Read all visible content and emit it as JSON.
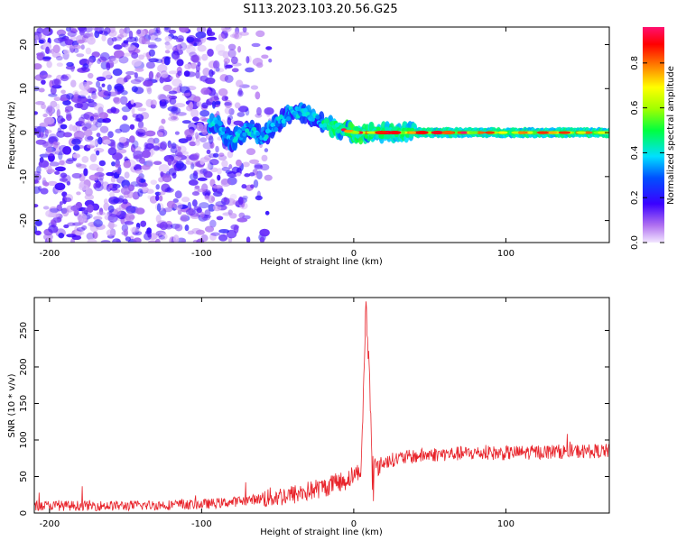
{
  "figure_title": "S113.2023.103.20.56.G25",
  "colors": {
    "snr_line": "#e8232a",
    "axis": "#000000",
    "colormap": [
      "#d9b8f5",
      "#8a2be2",
      "#1e1eff",
      "#00bfff",
      "#00ff7f",
      "#7cfc00",
      "#ffff00",
      "#ff8c00",
      "#ff0000",
      "#ff1493"
    ]
  },
  "chart_data": [
    {
      "type": "heatmap",
      "name": "spectrogram",
      "xlabel": "Height of straight line (km)",
      "ylabel": "Frequency (Hz)",
      "xlim": [
        -210,
        168
      ],
      "ylim": [
        -25,
        24
      ],
      "x_ticks": [
        -200,
        -100,
        0,
        100
      ],
      "y_ticks": [
        -20,
        -10,
        0,
        10,
        20
      ],
      "colorbar": {
        "label": "Normalized spectral amplitude",
        "range": [
          0,
          0.96
        ],
        "ticks": [
          "0.0",
          "0.2",
          "0.4",
          "0.6",
          "0.8"
        ],
        "tick_values": [
          0.0,
          0.2,
          0.4,
          0.6,
          0.8
        ]
      },
      "ridge": {
        "x": [
          -90,
          -80,
          -70,
          -60,
          -50,
          -40,
          -30,
          -20,
          -10,
          0,
          10,
          20,
          40,
          60,
          80,
          100,
          120,
          140,
          168
        ],
        "y": [
          2,
          -2,
          1,
          -1,
          2,
          5,
          4,
          2,
          1,
          0,
          0,
          0,
          0,
          0,
          0,
          0,
          0,
          0,
          0
        ]
      },
      "noise_region_x": [
        -210,
        -90
      ]
    },
    {
      "type": "line",
      "name": "snr",
      "xlabel": "Height of straight line (km)",
      "ylabel": "SNR (10 * v/v)",
      "xlim": [
        -210,
        168
      ],
      "ylim": [
        0,
        295
      ],
      "x_ticks": [
        -200,
        -100,
        0,
        100
      ],
      "y_ticks": [
        0,
        50,
        100,
        150,
        200,
        250
      ],
      "trend": {
        "x": [
          -210,
          -150,
          -100,
          -80,
          -60,
          -40,
          -20,
          -5,
          5,
          8,
          10,
          12,
          15,
          20,
          30,
          50,
          80,
          100,
          130,
          168
        ],
        "y": [
          10,
          10,
          12,
          15,
          20,
          25,
          35,
          45,
          60,
          290,
          200,
          80,
          60,
          70,
          75,
          80,
          82,
          82,
          84,
          85
        ]
      }
    }
  ]
}
